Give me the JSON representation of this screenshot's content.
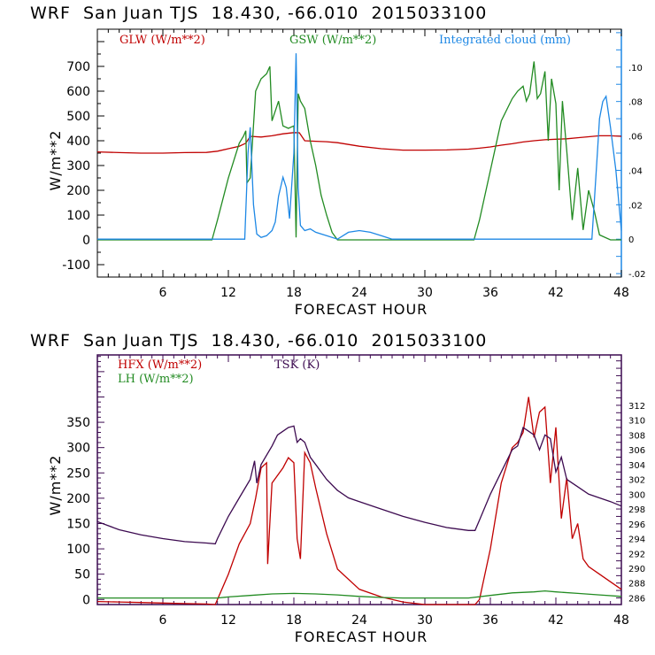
{
  "chart_data": [
    {
      "type": "line",
      "title": "WRF  San Juan TJS  18.430, -66.010  2015033100",
      "xlabel": "FORECAST HOUR",
      "ylabel": "W/m**2",
      "xlim": [
        0,
        48
      ],
      "ylim": [
        -150,
        850
      ],
      "y2lim": [
        -0.022,
        0.122
      ],
      "xticks": [
        "6",
        "12",
        "18",
        "24",
        "30",
        "36",
        "42",
        "48"
      ],
      "yticks": [
        "-100",
        "0",
        "100",
        "200",
        "300",
        "400",
        "500",
        "600",
        "700"
      ],
      "y2ticks": [
        "-.02",
        "0",
        ".02",
        ".04",
        ".06",
        ".08",
        ".10"
      ],
      "legend_placement": "top",
      "series": [
        {
          "name": "GLW (W/m**2)",
          "axis": "left",
          "color": "#c00000",
          "x": [
            0,
            2,
            4,
            6,
            8,
            10,
            11,
            12,
            13,
            13.6,
            14,
            15,
            16,
            17,
            18,
            18.5,
            19,
            20,
            21,
            22,
            24,
            26,
            28,
            30,
            32,
            34,
            35,
            36,
            37,
            38,
            39,
            40,
            41,
            42,
            43,
            44,
            45,
            46,
            47,
            48
          ],
          "y": [
            355,
            352,
            350,
            350,
            352,
            353,
            358,
            368,
            378,
            390,
            418,
            415,
            420,
            428,
            433,
            432,
            400,
            398,
            396,
            392,
            378,
            368,
            362,
            362,
            363,
            366,
            370,
            375,
            382,
            388,
            395,
            400,
            404,
            406,
            408,
            412,
            416,
            420,
            420,
            418
          ]
        },
        {
          "name": "GSW (W/m**2)",
          "axis": "left",
          "color": "#228b22",
          "x": [
            0,
            10.5,
            11,
            12,
            13,
            13.4,
            13.6,
            13.7,
            14,
            14.5,
            15,
            15.5,
            15.8,
            16,
            16.3,
            16.6,
            17,
            17.5,
            18,
            18.2,
            18.4,
            18.6,
            19,
            19.5,
            20,
            20.5,
            21,
            21.5,
            22,
            24,
            26,
            28,
            30,
            34.5,
            35,
            36,
            37,
            38,
            38.5,
            39,
            39.3,
            39.6,
            40,
            40.3,
            40.6,
            41,
            41.3,
            41.6,
            42,
            42.3,
            42.6,
            43,
            43.5,
            44,
            44.5,
            45,
            45.5,
            46,
            47,
            48
          ],
          "y": [
            0,
            0,
            80,
            250,
            390,
            420,
            440,
            230,
            250,
            600,
            650,
            670,
            700,
            480,
            520,
            560,
            460,
            450,
            460,
            10,
            590,
            560,
            530,
            400,
            300,
            180,
            100,
            30,
            0,
            0,
            0,
            0,
            0,
            0,
            80,
            280,
            480,
            570,
            600,
            620,
            560,
            590,
            720,
            570,
            590,
            680,
            400,
            650,
            550,
            200,
            560,
            360,
            80,
            290,
            40,
            200,
            120,
            20,
            0,
            0
          ]
        },
        {
          "name": "Integrated cloud (mm)",
          "axis": "right",
          "color": "#1e88e5",
          "x": [
            0,
            13.5,
            13.8,
            14,
            14.3,
            14.6,
            15,
            15.5,
            16,
            16.3,
            16.6,
            17,
            17.3,
            17.6,
            18,
            18.2,
            18.4,
            18.6,
            19,
            19.5,
            20,
            21,
            22,
            23,
            24,
            25,
            26,
            27,
            30,
            35,
            40,
            45.3,
            45.5,
            45.8,
            46,
            46.3,
            46.6,
            47,
            47.5,
            48
          ],
          "y": [
            0,
            0,
            0.05,
            0.065,
            0.02,
            0.003,
            0.001,
            0.002,
            0.005,
            0.01,
            0.025,
            0.036,
            0.03,
            0.012,
            0.05,
            0.108,
            0.03,
            0.008,
            0.005,
            0.006,
            0.004,
            0.002,
            0.0,
            0.004,
            0.005,
            0.004,
            0.002,
            0.0,
            0.0,
            0.0,
            0.0,
            0.0,
            0.02,
            0.05,
            0.07,
            0.08,
            0.083,
            0.065,
            0.04,
            0.005
          ]
        }
      ]
    },
    {
      "type": "line",
      "title": "WRF  San Juan TJS  18.430, -66.010  2015033100",
      "xlabel": "FORECAST HOUR",
      "ylabel": "W/m**2",
      "xlim": [
        0,
        48
      ],
      "ylim": [
        -10,
        483
      ],
      "y2lim": [
        285.1,
        318.8
      ],
      "xticks": [
        "6",
        "12",
        "18",
        "24",
        "30",
        "36",
        "42",
        "48"
      ],
      "yticks": [
        "0",
        "50",
        "100",
        "150",
        "200",
        "250",
        "300",
        "350"
      ],
      "y2ticks": [
        "286",
        "288",
        "290",
        "292",
        "294",
        "296",
        "298",
        "300",
        "302",
        "304",
        "306",
        "308",
        "310",
        "312"
      ],
      "legend_placement": "top-left",
      "series": [
        {
          "name": "HFX (W/m**2)",
          "axis": "left",
          "color": "#c00000",
          "x": [
            0,
            2,
            4,
            6,
            8,
            10,
            10.8,
            11,
            12,
            13,
            14,
            14.5,
            15,
            15.5,
            15.6,
            16,
            17,
            17.5,
            18,
            18.3,
            18.6,
            19,
            19.5,
            20,
            21,
            22,
            24,
            26,
            28,
            30,
            32,
            34,
            34.6,
            35,
            36,
            37,
            38,
            38.5,
            39,
            39.5,
            40,
            40.5,
            41,
            41.5,
            42,
            42.5,
            43,
            43.5,
            44,
            44.5,
            45,
            46,
            47,
            48
          ],
          "y": [
            -4,
            -5,
            -6,
            -7,
            -8,
            -9,
            -12,
            0,
            50,
            110,
            150,
            200,
            260,
            270,
            70,
            230,
            260,
            280,
            270,
            120,
            80,
            290,
            270,
            220,
            130,
            60,
            20,
            5,
            -5,
            -10,
            -12,
            -14,
            -14,
            0,
            100,
            230,
            300,
            310,
            330,
            400,
            320,
            370,
            380,
            230,
            340,
            160,
            240,
            120,
            150,
            80,
            65,
            50,
            35,
            20
          ]
        },
        {
          "name": "LH (W/m**2)",
          "axis": "left",
          "color": "#228b22",
          "x": [
            0,
            6,
            10,
            11,
            12,
            14,
            16,
            18,
            20,
            22,
            24,
            26,
            28,
            30,
            32,
            34,
            36,
            38,
            40,
            41,
            42,
            44,
            46,
            48
          ],
          "y": [
            3,
            3,
            3,
            3,
            5,
            8,
            11,
            12,
            11,
            9,
            6,
            4,
            3,
            3,
            3,
            3,
            8,
            13,
            15,
            17,
            15,
            12,
            9,
            6
          ]
        },
        {
          "name": "TSK (K)",
          "axis": "right",
          "color": "#3c0a50",
          "x": [
            0,
            2,
            4,
            6,
            8,
            10,
            10.8,
            11,
            12,
            13,
            14,
            14.4,
            14.6,
            15,
            16,
            16.5,
            17,
            17.5,
            18,
            18.3,
            18.6,
            19,
            19.5,
            20,
            21,
            22,
            23,
            24,
            26,
            28,
            30,
            32,
            34,
            34.6,
            35,
            36,
            37,
            38,
            38.5,
            39,
            39.5,
            40,
            40.5,
            41,
            41.5,
            42,
            42.5,
            43,
            44,
            45,
            46,
            47,
            48
          ],
          "y": [
            296.3,
            295.2,
            294.5,
            294.0,
            293.6,
            293.4,
            293.3,
            294.0,
            297.0,
            299.5,
            302.0,
            304.5,
            301.5,
            304.0,
            306.5,
            308.0,
            308.5,
            309.0,
            309.2,
            307.0,
            307.5,
            307.0,
            305.0,
            304.0,
            302.0,
            300.5,
            299.5,
            299.0,
            298.0,
            297.0,
            296.2,
            295.5,
            295.1,
            295.1,
            296.5,
            300.0,
            303.0,
            306.0,
            306.5,
            309.0,
            308.5,
            308.0,
            306.0,
            308.0,
            307.5,
            303.0,
            305.0,
            302.0,
            301.0,
            300.0,
            299.5,
            299.0,
            298.4
          ]
        }
      ]
    }
  ]
}
